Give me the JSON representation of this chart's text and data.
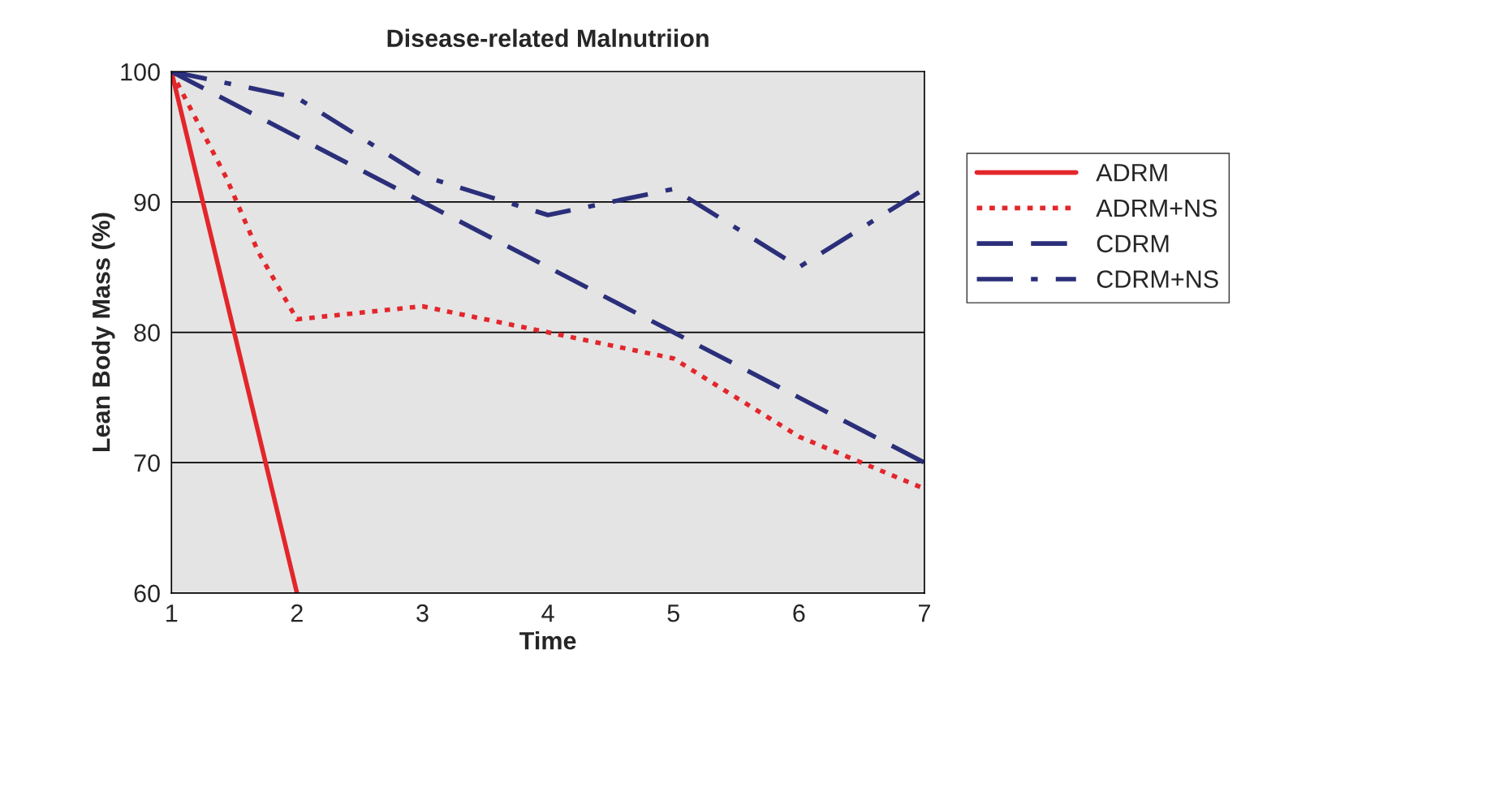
{
  "chart_data": {
    "type": "line",
    "title": "Disease-related Malnutriion",
    "xlabel": "Time",
    "ylabel": "Lean Body Mass (%)",
    "xlim": [
      1,
      7
    ],
    "xticks": [
      1,
      2,
      3,
      4,
      5,
      6,
      7
    ],
    "ylim": [
      60,
      100
    ],
    "yticks": [
      60,
      70,
      80,
      90,
      100
    ],
    "grid": "y",
    "legend": "right",
    "series": [
      {
        "name": "ADRM",
        "color": "#e3262b",
        "line_style": "solid",
        "x": [
          1,
          2
        ],
        "values": [
          100,
          60
        ]
      },
      {
        "name": "ADRM+NS",
        "color": "#e3262b",
        "line_style": "dotted",
        "x": [
          1,
          1.44,
          1.69,
          2,
          3,
          4,
          5,
          6,
          7
        ],
        "values": [
          100,
          91.8,
          86.2,
          81,
          82,
          80,
          78,
          72,
          68
        ]
      },
      {
        "name": "CDRM",
        "color": "#2b2f7a",
        "line_style": "dashed",
        "x": [
          1,
          2,
          3,
          4,
          5,
          6,
          7
        ],
        "values": [
          100,
          95,
          90,
          85,
          80,
          75,
          70
        ]
      },
      {
        "name": "CDRM+NS",
        "color": "#2b2f7a",
        "line_style": "dashdot",
        "x": [
          1,
          2,
          3,
          4,
          5,
          6,
          7
        ],
        "values": [
          100,
          98,
          92,
          89,
          91,
          85,
          91
        ]
      }
    ]
  }
}
